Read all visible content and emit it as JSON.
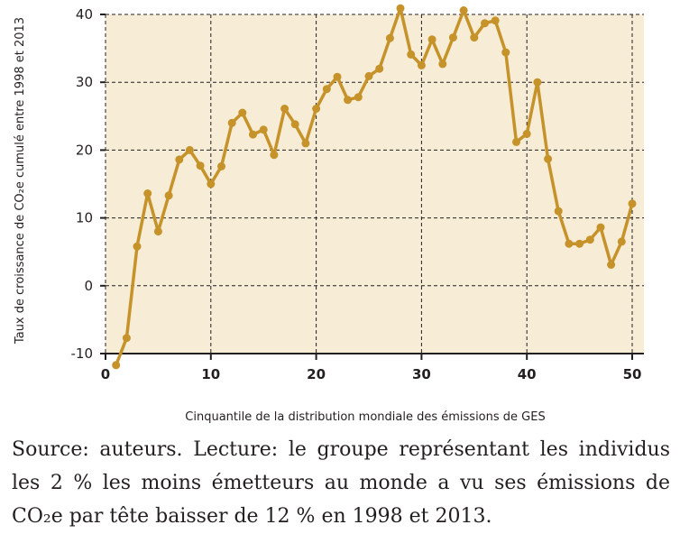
{
  "chart_data": {
    "type": "line",
    "xlabel": "Cinquantile de la distribution mondiale des émissions de GES",
    "ylabel": "Taux de croissance de CO₂e cumulé entre 1998 et 2013",
    "xlim": [
      0,
      50
    ],
    "ylim": [
      -10,
      40
    ],
    "x_ticks": [
      0,
      10,
      20,
      30,
      40,
      50
    ],
    "y_ticks": [
      -10,
      0,
      10,
      20,
      30,
      40
    ],
    "grid": true,
    "colors": {
      "line": "#c6922a",
      "background": "#f7ecd5",
      "grid": "#231f20"
    },
    "x": [
      1,
      2,
      3,
      4,
      5,
      6,
      7,
      8,
      9,
      10,
      11,
      12,
      13,
      14,
      15,
      16,
      17,
      18,
      19,
      20,
      21,
      22,
      23,
      24,
      25,
      26,
      27,
      28,
      29,
      30,
      31,
      32,
      33,
      34,
      35,
      36,
      37,
      38,
      39,
      40,
      41,
      42,
      43,
      44,
      45,
      46,
      47,
      48,
      49,
      50
    ],
    "values": [
      -11.7,
      -7.7,
      5.8,
      13.6,
      8.0,
      13.3,
      18.6,
      20.0,
      17.7,
      15.0,
      17.6,
      24.0,
      25.5,
      22.3,
      23.0,
      19.3,
      26.1,
      23.8,
      21.0,
      26.1,
      29.0,
      30.8,
      27.4,
      27.8,
      30.9,
      32.0,
      36.5,
      40.9,
      34.1,
      32.5,
      36.3,
      32.7,
      36.6,
      40.6,
      36.6,
      38.7,
      39.1,
      34.4,
      21.2,
      22.4,
      30.0,
      18.7,
      11.0,
      6.2,
      6.2,
      6.8,
      8.6,
      3.1,
      6.5,
      12.1
    ]
  },
  "caption": "Source: auteurs. Lecture: le groupe représentant les individus les 2 % les moins émetteurs au monde a vu ses émissions de CO₂e par tête baisser de 12 % en 1998 et 2013."
}
